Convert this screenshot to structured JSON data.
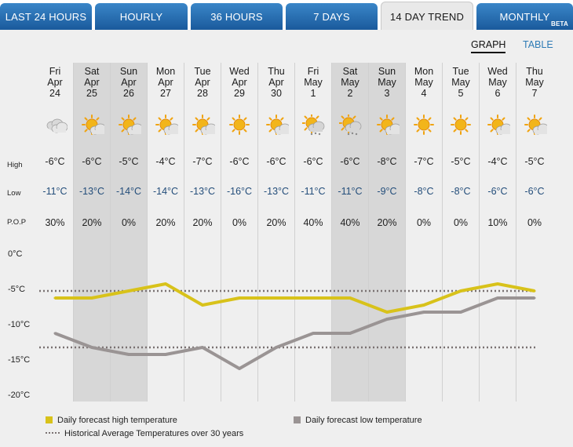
{
  "tabs": [
    {
      "label": "LAST 24 HOURS",
      "active": false
    },
    {
      "label": "HOURLY",
      "active": false
    },
    {
      "label": "36 HOURS",
      "active": false
    },
    {
      "label": "7 DAYS",
      "active": false
    },
    {
      "label": "14 DAY TREND",
      "active": true
    },
    {
      "label": "MONTHLY",
      "active": false,
      "badge": "BETA"
    }
  ],
  "view_toggle": {
    "graph": "GRAPH",
    "table": "TABLE",
    "selected": "GRAPH"
  },
  "row_labels": {
    "high": "High",
    "low": "Low",
    "pop": "P.O.P"
  },
  "days": [
    {
      "dow": "Fri",
      "month": "Apr",
      "date": "24",
      "icon": "cloudy-icon",
      "high": "-6°C",
      "low": "-11°C",
      "pop": "30%",
      "weekend": false
    },
    {
      "dow": "Sat",
      "month": "Apr",
      "date": "25",
      "icon": "sun-cloud-icon",
      "high": "-6°C",
      "low": "-13°C",
      "pop": "20%",
      "weekend": true
    },
    {
      "dow": "Sun",
      "month": "Apr",
      "date": "26",
      "icon": "sun-cloud-icon",
      "high": "-5°C",
      "low": "-14°C",
      "pop": "0%",
      "weekend": true
    },
    {
      "dow": "Mon",
      "month": "Apr",
      "date": "27",
      "icon": "sun-cloud-icon",
      "high": "-4°C",
      "low": "-14°C",
      "pop": "20%",
      "weekend": false
    },
    {
      "dow": "Tue",
      "month": "Apr",
      "date": "28",
      "icon": "sun-cloud-icon",
      "high": "-7°C",
      "low": "-13°C",
      "pop": "20%",
      "weekend": false
    },
    {
      "dow": "Wed",
      "month": "Apr",
      "date": "29",
      "icon": "sun-icon",
      "high": "-6°C",
      "low": "-16°C",
      "pop": "0%",
      "weekend": false
    },
    {
      "dow": "Thu",
      "month": "Apr",
      "date": "30",
      "icon": "sun-cloud-icon",
      "high": "-6°C",
      "low": "-13°C",
      "pop": "20%",
      "weekend": false
    },
    {
      "dow": "Fri",
      "month": "May",
      "date": "1",
      "icon": "snow-cloud-icon",
      "high": "-6°C",
      "low": "-11°C",
      "pop": "40%",
      "weekend": false
    },
    {
      "dow": "Sat",
      "month": "May",
      "date": "2",
      "icon": "snow-cloud-icon",
      "high": "-6°C",
      "low": "-11°C",
      "pop": "40%",
      "weekend": true
    },
    {
      "dow": "Sun",
      "month": "May",
      "date": "3",
      "icon": "sun-cloud-icon",
      "high": "-8°C",
      "low": "-9°C",
      "pop": "20%",
      "weekend": true
    },
    {
      "dow": "Mon",
      "month": "May",
      "date": "4",
      "icon": "sun-icon",
      "high": "-7°C",
      "low": "-8°C",
      "pop": "0%",
      "weekend": false
    },
    {
      "dow": "Tue",
      "month": "May",
      "date": "5",
      "icon": "sun-icon",
      "high": "-5°C",
      "low": "-8°C",
      "pop": "0%",
      "weekend": false
    },
    {
      "dow": "Wed",
      "month": "May",
      "date": "6",
      "icon": "sun-cloud-icon",
      "high": "-4°C",
      "low": "-6°C",
      "pop": "10%",
      "weekend": false
    },
    {
      "dow": "Thu",
      "month": "May",
      "date": "7",
      "icon": "sun-cloud-icon",
      "high": "-5°C",
      "low": "-6°C",
      "pop": "0%",
      "weekend": false
    }
  ],
  "chart_data": {
    "type": "line",
    "x": [
      "Apr 24",
      "Apr 25",
      "Apr 26",
      "Apr 27",
      "Apr 28",
      "Apr 29",
      "Apr 30",
      "May 1",
      "May 2",
      "May 3",
      "May 4",
      "May 5",
      "May 6",
      "May 7"
    ],
    "series": [
      {
        "name": "Daily forecast high temperature",
        "color": "#d8c21a",
        "values": [
          -6,
          -6,
          -5,
          -4,
          -7,
          -6,
          -6,
          -6,
          -6,
          -8,
          -7,
          -5,
          -4,
          -5
        ]
      },
      {
        "name": "Daily forecast low temperature",
        "color": "#9a9494",
        "values": [
          -11,
          -13,
          -14,
          -14,
          -13,
          -16,
          -13,
          -11,
          -11,
          -9,
          -8,
          -8,
          -6,
          -6
        ]
      }
    ],
    "reference_lines": [
      {
        "name": "Historical Average Temperatures over 30 years",
        "values": [
          -5,
          -13
        ],
        "style": "dotted",
        "color": "#7a7272"
      }
    ],
    "y_ticks": [
      "0°C",
      "-5°C",
      "-10°C",
      "-15°C",
      "-20°C"
    ],
    "ylim": [
      -20,
      0
    ],
    "legend_position": "bottom"
  }
}
